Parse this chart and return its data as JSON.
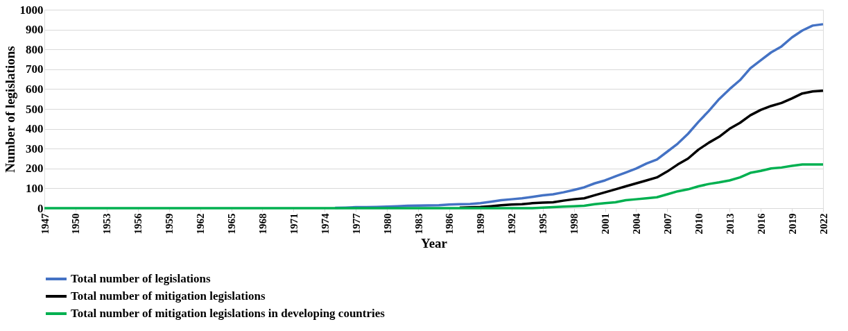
{
  "chart_data": {
    "type": "line",
    "xlabel": "Year",
    "ylabel": "Number of legislations",
    "x": [
      1947,
      1948,
      1949,
      1950,
      1951,
      1952,
      1953,
      1954,
      1955,
      1956,
      1957,
      1958,
      1959,
      1960,
      1961,
      1962,
      1963,
      1964,
      1965,
      1966,
      1967,
      1968,
      1969,
      1970,
      1971,
      1972,
      1973,
      1974,
      1975,
      1976,
      1977,
      1978,
      1979,
      1980,
      1981,
      1982,
      1983,
      1984,
      1985,
      1986,
      1987,
      1988,
      1989,
      1990,
      1991,
      1992,
      1993,
      1994,
      1995,
      1996,
      1997,
      1998,
      1999,
      2000,
      2001,
      2002,
      2003,
      2004,
      2005,
      2006,
      2007,
      2008,
      2009,
      2010,
      2011,
      2012,
      2013,
      2014,
      2015,
      2016,
      2017,
      2018,
      2019,
      2020,
      2021,
      2022
    ],
    "series": [
      {
        "name": "Total number of legislations",
        "color": "#4472c4",
        "values": [
          null,
          null,
          null,
          null,
          null,
          null,
          null,
          null,
          null,
          null,
          null,
          null,
          null,
          null,
          null,
          null,
          null,
          null,
          null,
          null,
          null,
          null,
          null,
          null,
          null,
          null,
          null,
          null,
          2,
          3,
          5,
          5,
          6,
          8,
          10,
          12,
          13,
          14,
          15,
          18,
          20,
          21,
          25,
          32,
          40,
          45,
          50,
          57,
          65,
          70,
          80,
          92,
          105,
          125,
          140,
          160,
          180,
          200,
          225,
          245,
          285,
          325,
          375,
          435,
          490,
          550,
          600,
          645,
          705,
          745,
          785,
          815,
          860,
          895,
          920,
          927
        ]
      },
      {
        "name": "Total number of mitigation legislations",
        "color": "#000000",
        "values": [
          null,
          null,
          null,
          null,
          null,
          null,
          null,
          null,
          null,
          null,
          null,
          null,
          null,
          null,
          null,
          null,
          null,
          null,
          null,
          null,
          null,
          null,
          null,
          null,
          null,
          null,
          null,
          null,
          null,
          null,
          null,
          null,
          null,
          null,
          null,
          null,
          null,
          null,
          null,
          null,
          3,
          4,
          6,
          10,
          15,
          18,
          20,
          25,
          28,
          30,
          38,
          45,
          50,
          65,
          80,
          95,
          110,
          125,
          140,
          155,
          185,
          220,
          250,
          295,
          330,
          360,
          400,
          430,
          468,
          495,
          515,
          530,
          553,
          578,
          588,
          592
        ]
      },
      {
        "name": "Total number of mitigation legislations in developing countries",
        "color": "#00b050",
        "values": [
          0,
          0,
          0,
          0,
          0,
          0,
          0,
          0,
          0,
          0,
          0,
          0,
          0,
          0,
          0,
          0,
          0,
          0,
          0,
          0,
          0,
          0,
          0,
          0,
          0,
          0,
          0,
          0,
          0,
          0,
          0,
          0,
          0,
          0,
          0,
          0,
          0,
          0,
          0,
          0,
          0,
          0,
          0,
          0,
          0,
          0,
          0,
          0,
          3,
          5,
          8,
          10,
          12,
          20,
          25,
          30,
          40,
          45,
          50,
          55,
          70,
          85,
          95,
          110,
          122,
          130,
          140,
          155,
          178,
          188,
          200,
          205,
          213,
          220,
          220,
          220
        ]
      }
    ],
    "xlim": [
      1947,
      2022
    ],
    "xticks": [
      1947,
      1950,
      1953,
      1956,
      1959,
      1962,
      1965,
      1968,
      1971,
      1974,
      1977,
      1980,
      1983,
      1986,
      1989,
      1992,
      1995,
      1998,
      2001,
      2004,
      2007,
      2010,
      2013,
      2016,
      2019,
      2022
    ],
    "ylim": [
      0,
      1000
    ],
    "yticks": [
      0,
      100,
      200,
      300,
      400,
      500,
      600,
      700,
      800,
      900,
      1000
    ],
    "grid": "y",
    "legend": "bottom",
    "line_style": "solid",
    "marker": "none"
  }
}
